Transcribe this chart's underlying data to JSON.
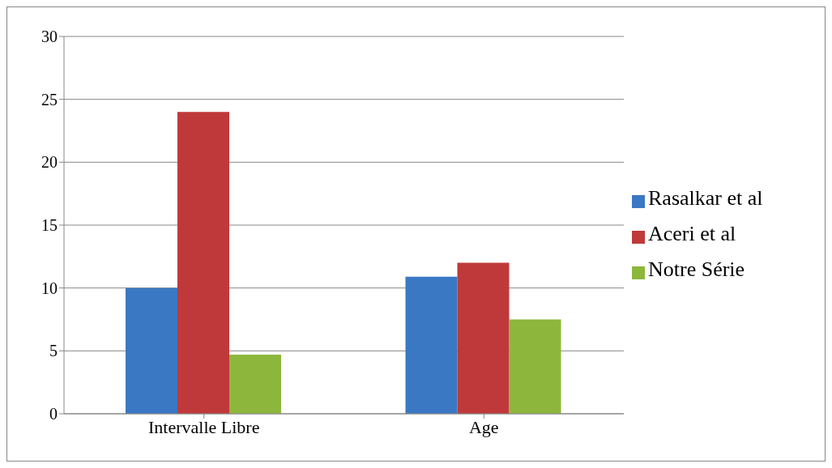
{
  "chart_data": {
    "type": "bar",
    "categories": [
      "Intervalle Libre",
      "Age"
    ],
    "series": [
      {
        "name": "Rasalkar et al",
        "color": "#3a78c3",
        "values": [
          10,
          10.9
        ]
      },
      {
        "name": "Aceri et al",
        "color": "#c0393a",
        "values": [
          24,
          12
        ]
      },
      {
        "name": "Notre Série",
        "color": "#8db73c",
        "values": [
          4.7,
          7.5
        ]
      }
    ],
    "ylim": [
      0,
      30
    ],
    "yticks": [
      0,
      5,
      10,
      15,
      20,
      25,
      30
    ],
    "grid": "y",
    "legend": "right"
  }
}
